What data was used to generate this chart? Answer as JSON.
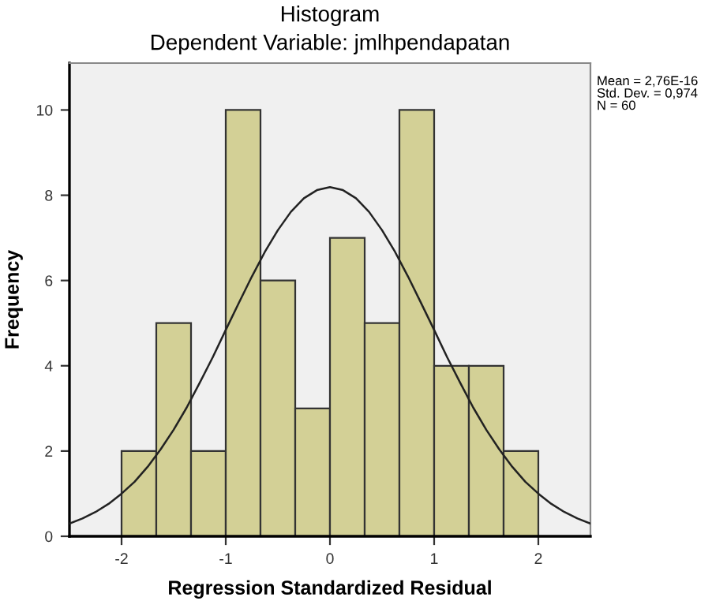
{
  "chart_data": {
    "type": "histogram",
    "title": "Histogram",
    "subtitle": "Dependent Variable: jmlhpendapatan",
    "xlabel": "Regression Standardized Residual",
    "ylabel": "Frequency",
    "bins": [
      -2,
      -1.6667,
      -1.3333,
      -1,
      -0.6667,
      -0.3333,
      0,
      0.3333,
      0.6667,
      1,
      1.3333,
      1.6667,
      2
    ],
    "series": [
      {
        "color": "#d3d096",
        "values": [
          2,
          5,
          2,
          10,
          6,
          3,
          7,
          5,
          10,
          4,
          4,
          2
        ]
      },
      {
        "type": "line",
        "color": "#222222",
        "x": [
          -2.5,
          -2.375,
          -2.25,
          -2.125,
          -2,
          -1.875,
          -1.75,
          -1.625,
          -1.5,
          -1.375,
          -1.25,
          -1.125,
          -1,
          -0.875,
          -0.75,
          -0.625,
          -0.5,
          -0.375,
          -0.25,
          -0.125,
          0,
          0.125,
          0.25,
          0.375,
          0.5,
          0.625,
          0.75,
          0.875,
          1,
          1.125,
          1.25,
          1.375,
          1.5,
          1.625,
          1.75,
          1.875,
          2,
          2.125,
          2.25,
          2.375,
          2.5
        ],
        "values": [
          0.3,
          0.42,
          0.57,
          0.76,
          1.0,
          1.28,
          1.63,
          2.04,
          2.5,
          3.02,
          3.6,
          4.2,
          4.84,
          5.47,
          6.09,
          6.67,
          7.18,
          7.61,
          7.93,
          8.12,
          8.19,
          8.12,
          7.93,
          7.61,
          7.18,
          6.67,
          6.09,
          5.47,
          4.84,
          4.2,
          3.6,
          3.02,
          2.5,
          2.04,
          1.63,
          1.28,
          1.0,
          0.76,
          0.57,
          0.42,
          0.3
        ]
      }
    ],
    "annotations": [
      "Mean = 2,76E-16\nStd. Dev. = 0,974\nN = 60"
    ],
    "xlim": [
      -2.5,
      2.5
    ],
    "ylim": [
      0,
      11.1
    ],
    "xticks": [
      -2,
      -1,
      0,
      1,
      2
    ],
    "yticks": [
      0,
      2,
      4,
      6,
      8,
      10
    ],
    "grid": false,
    "legend": false
  }
}
